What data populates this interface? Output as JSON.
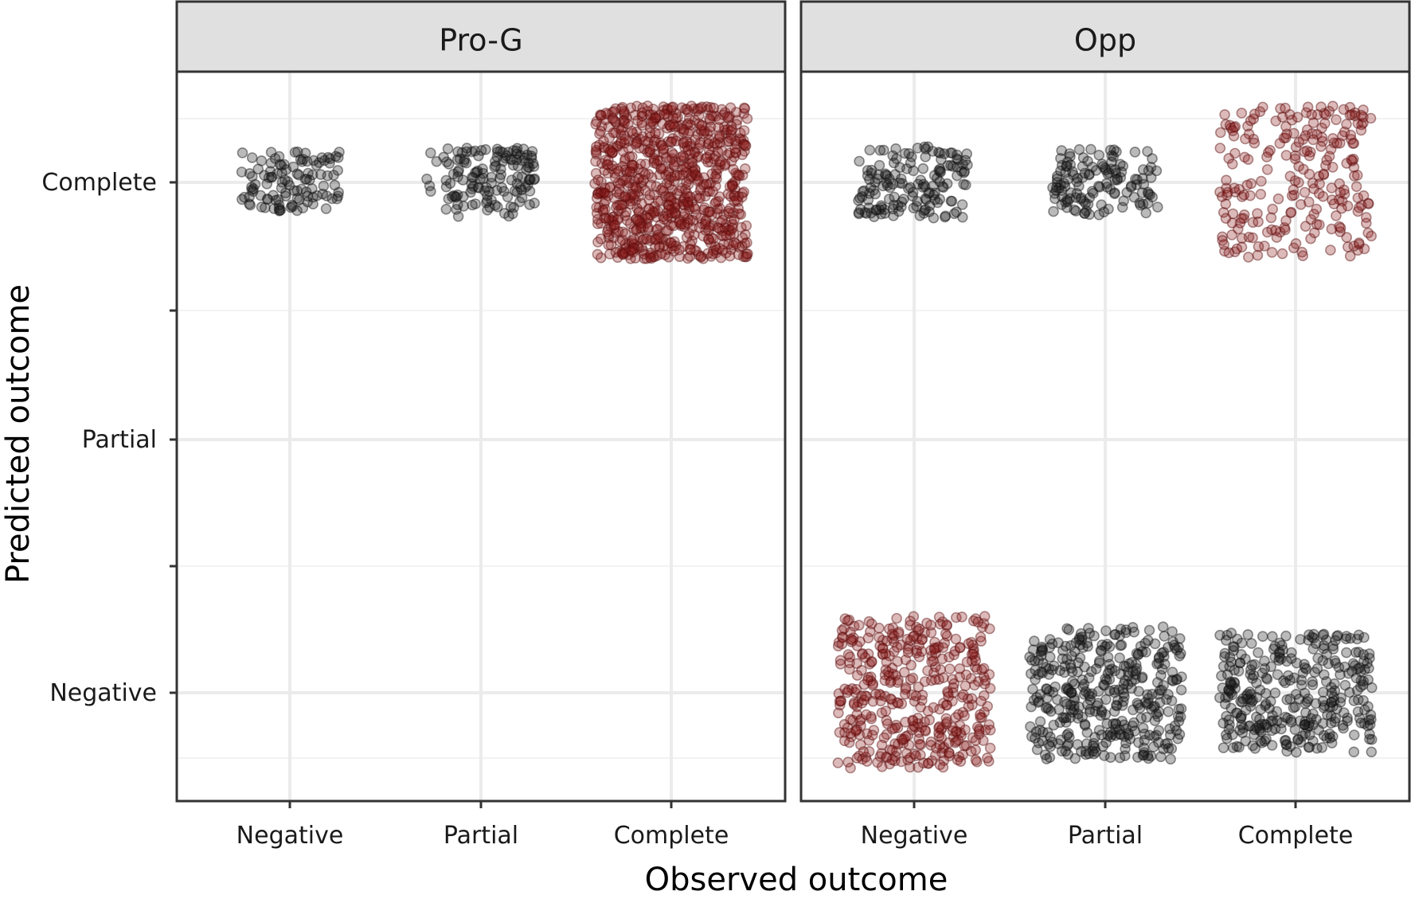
{
  "chart_data": {
    "type": "scatter",
    "subtype": "jittered-confusion-matrix",
    "xlabel": "Observed outcome",
    "ylabel": "Predicted outcome",
    "categories": [
      "Negative",
      "Partial",
      "Complete"
    ],
    "grid": true,
    "legend": "none",
    "colors": {
      "correct": "#8b1a1a",
      "incorrect": "#1a1a1a",
      "strip_bg": "#e0e0e0",
      "panel_border": "#333333",
      "grid": "#ebebeb"
    },
    "panels": [
      {
        "title": "Pro-G",
        "cells": [
          {
            "observed": "Negative",
            "predicted": "Complete",
            "correct": false,
            "approx_count": 110
          },
          {
            "observed": "Partial",
            "predicted": "Complete",
            "correct": false,
            "approx_count": 140
          },
          {
            "observed": "Complete",
            "predicted": "Complete",
            "correct": true,
            "approx_count": 800
          }
        ]
      },
      {
        "title": "Opp",
        "cells": [
          {
            "observed": "Negative",
            "predicted": "Complete",
            "correct": false,
            "approx_count": 150
          },
          {
            "observed": "Partial",
            "predicted": "Complete",
            "correct": false,
            "approx_count": 130
          },
          {
            "observed": "Complete",
            "predicted": "Complete",
            "correct": true,
            "approx_count": 240
          },
          {
            "observed": "Negative",
            "predicted": "Negative",
            "correct": true,
            "approx_count": 420
          },
          {
            "observed": "Partial",
            "predicted": "Negative",
            "correct": false,
            "approx_count": 380
          },
          {
            "observed": "Complete",
            "predicted": "Negative",
            "correct": false,
            "approx_count": 330
          }
        ]
      }
    ]
  }
}
